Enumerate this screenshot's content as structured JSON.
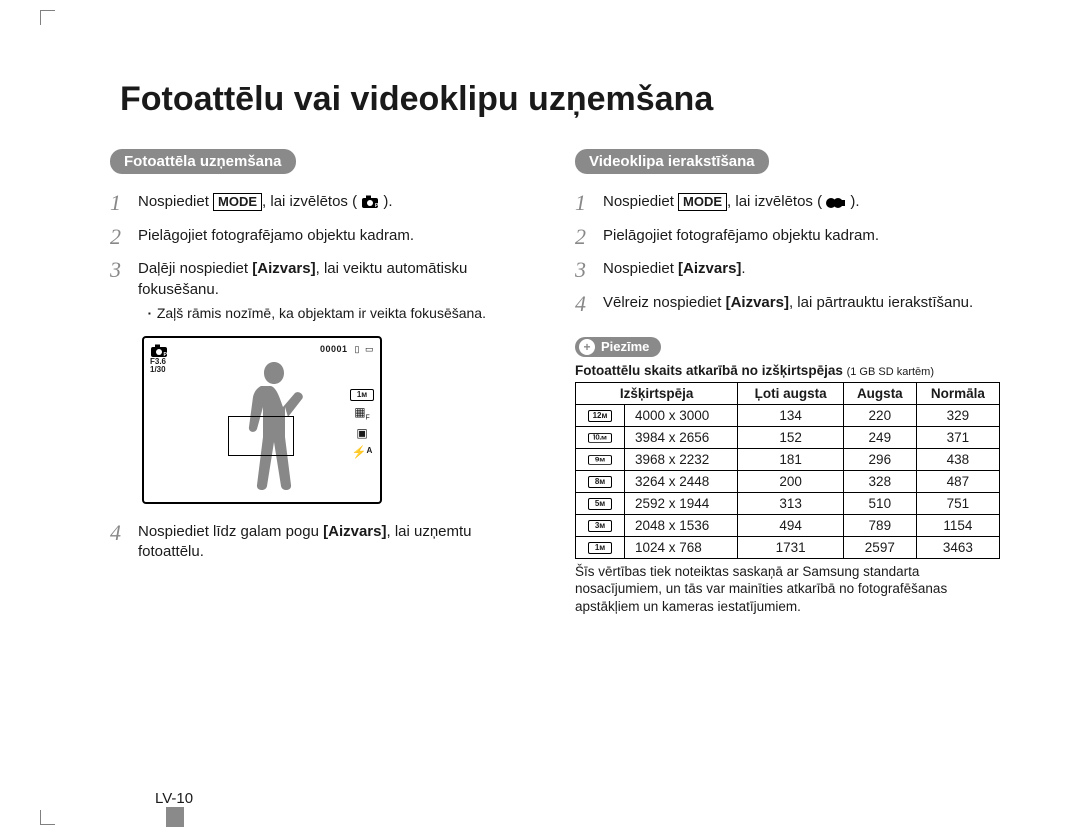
{
  "title": "Fotoattēlu vai videoklipu uzņemšana",
  "page_number": "LV-10",
  "colors": {
    "text": "#1a1a1a",
    "pill_bg": "#8a8a8a",
    "pill_fg": "#ffffff",
    "border": "#000000",
    "background": "#ffffff"
  },
  "left": {
    "header": "Fotoattēla uzņemšana",
    "steps": {
      "s1_pre": "Nospiediet ",
      "s1_mode": "MODE",
      "s1_post": ", lai izvēlētos ( ",
      "s1_post2": " ).",
      "s2": "Pielāgojiet fotografējamo objektu kadram.",
      "s3_a": "Daļēji nospiediet ",
      "s3_b": "[Aizvars]",
      "s3_c": ", lai veiktu automātisku fokusēšanu.",
      "s3_sub": "Zaļš rāmis nozīmē, ka objektam ir veikta fokusēšana.",
      "s4_a": "Nospiediet līdz galam pogu ",
      "s4_b": "[Aizvars]",
      "s4_c": ", lai uzņemtu fotoattēlu."
    },
    "lcd": {
      "f_number": "F3.6",
      "shutter": "1/30",
      "counter": "00001",
      "flash": "⚡ᴬ"
    }
  },
  "right": {
    "header": "Videoklipa ierakstīšana",
    "steps": {
      "s1_pre": "Nospiediet ",
      "s1_mode": "MODE",
      "s1_post": ", lai izvēlētos ( ",
      "s1_post2": " ).",
      "s2": "Pielāgojiet fotografējamo objektu kadram.",
      "s3_a": "Nospiediet ",
      "s3_b": "[Aizvars]",
      "s3_c": ".",
      "s4_a": "Vēlreiz nospiediet ",
      "s4_b": "[Aizvars]",
      "s4_c": ", lai pārtrauktu ierakstīšanu."
    },
    "note_label": "Piezīme",
    "note_title_a": "Fotoattēlu skaits atkarībā no izšķirtspējas ",
    "note_title_b": "(1 GB SD kartēm)",
    "table": {
      "headers": [
        "Izšķirtspēja",
        "Ļoti augsta",
        "Augsta",
        "Normāla"
      ],
      "rows": [
        {
          "icon": "12м",
          "dim": "4000 x 3000",
          "v": [
            "134",
            "220",
            "329"
          ]
        },
        {
          "icon": "⒑м",
          "wide": true,
          "dim": "3984 x 2656",
          "v": [
            "152",
            "249",
            "371"
          ]
        },
        {
          "icon": "9м",
          "wide": true,
          "dim": "3968 x 2232",
          "v": [
            "181",
            "296",
            "438"
          ]
        },
        {
          "icon": "8м",
          "dim": "3264 x 2448",
          "v": [
            "200",
            "328",
            "487"
          ]
        },
        {
          "icon": "5м",
          "dim": "2592 x 1944",
          "v": [
            "313",
            "510",
            "751"
          ]
        },
        {
          "icon": "3м",
          "dim": "2048 x 1536",
          "v": [
            "494",
            "789",
            "1154"
          ]
        },
        {
          "icon": "1м",
          "dim": "1024 x 768",
          "v": [
            "1731",
            "2597",
            "3463"
          ]
        }
      ]
    },
    "footnote": "Šīs vērtības tiek noteiktas saskaņā ar Samsung standarta nosacījumiem, un tās var mainīties atkarībā no fotografēšanas apstākļiem un kameras iestatījumiem."
  }
}
